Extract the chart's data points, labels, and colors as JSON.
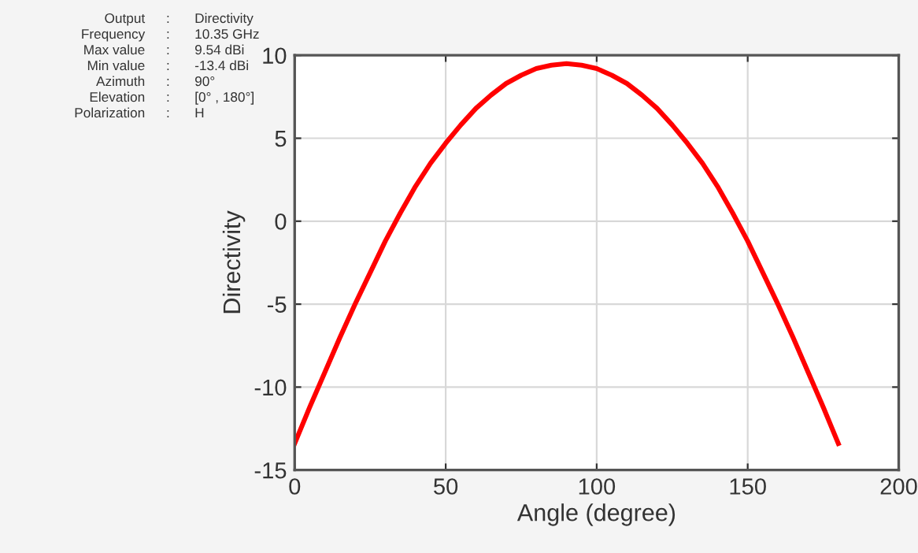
{
  "chart_data": {
    "type": "line",
    "xlabel": "Angle (degree)",
    "ylabel": "Directivity",
    "x": [
      0,
      5,
      10,
      15,
      20,
      25,
      30,
      35,
      40,
      45,
      50,
      55,
      60,
      65,
      70,
      75,
      80,
      85,
      90,
      95,
      100,
      105,
      110,
      115,
      120,
      125,
      130,
      135,
      140,
      145,
      150,
      155,
      160,
      165,
      170,
      175,
      180
    ],
    "series": [
      {
        "color": "#ff0000",
        "values": [
          -13.4,
          -11.2,
          -9.1,
          -7.0,
          -5.0,
          -3.1,
          -1.2,
          0.5,
          2.1,
          3.5,
          4.7,
          5.8,
          6.8,
          7.6,
          8.3,
          8.8,
          9.2,
          9.4,
          9.5,
          9.4,
          9.2,
          8.8,
          8.3,
          7.6,
          6.8,
          5.8,
          4.7,
          3.5,
          2.1,
          0.5,
          -1.2,
          -3.1,
          -5.0,
          -7.0,
          -9.1,
          -11.2,
          -13.4
        ]
      }
    ],
    "xlim": [
      0,
      200
    ],
    "xticks": [
      0,
      50,
      100,
      150,
      200
    ],
    "ylim": [
      -15,
      10
    ],
    "yticks": [
      -15,
      -10,
      -5,
      0,
      5,
      10
    ],
    "grid": true,
    "marker": "none",
    "line_style": "solid",
    "annotations": [
      "Output : Directivity",
      "Frequency : 10.35 GHz",
      "Max value : 9.54 dBi",
      "Min value : -13.4 dBi",
      "Azimuth : 90°",
      "Elevation : [0° , 180°]",
      "Polarization : H"
    ]
  }
}
